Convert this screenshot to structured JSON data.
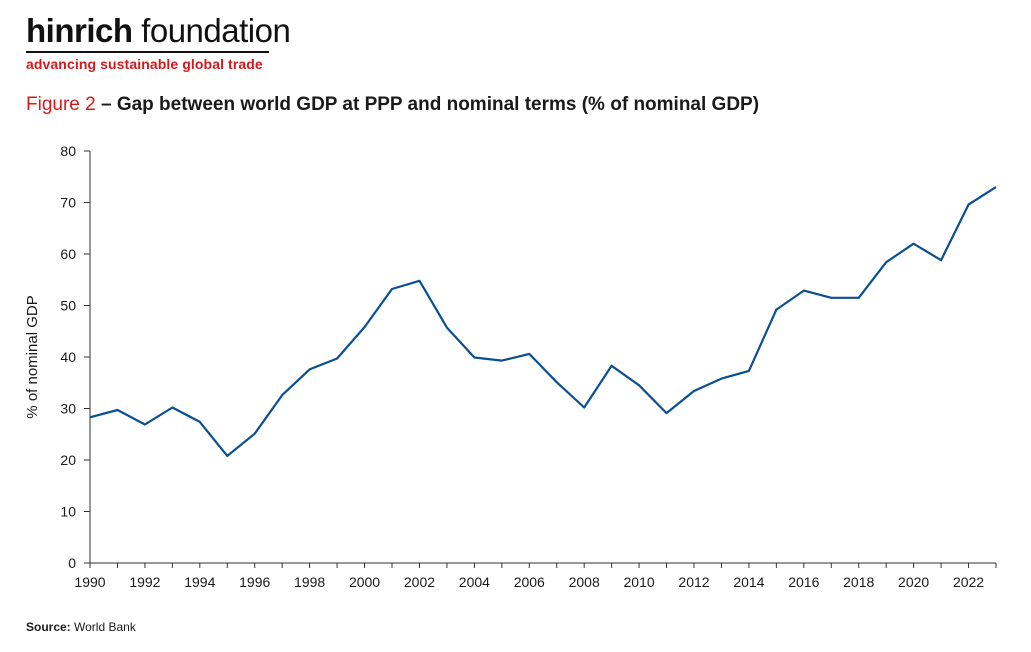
{
  "brand": {
    "name_bold": "hinrich",
    "name_regular": " foundation",
    "tagline": "advancing sustainable global trade"
  },
  "figure": {
    "label": "Figure 2",
    "title": " – Gap between world GDP at PPP and nominal terms (% of nominal GDP)"
  },
  "source": {
    "label": "Source:",
    "text": " World Bank"
  },
  "colors": {
    "line": "#0b4f93",
    "accent": "#d7191c",
    "axis": "#333333"
  },
  "chart_data": {
    "type": "line",
    "ylabel": "% of nominal GDP",
    "xlabel": "",
    "ylim": [
      0,
      80
    ],
    "xlim": [
      1990,
      2023
    ],
    "yticks": [
      0,
      10,
      20,
      30,
      40,
      50,
      60,
      70,
      80
    ],
    "xticks": [
      1990,
      1992,
      1994,
      1996,
      1998,
      2000,
      2002,
      2004,
      2006,
      2008,
      2010,
      2012,
      2014,
      2016,
      2018,
      2020,
      2022
    ],
    "grid": false,
    "series": [
      {
        "x": [
          1990,
          1991,
          1992,
          1993,
          1994,
          1995,
          1996,
          1997,
          1998,
          1999,
          2000,
          2001,
          2002,
          2003,
          2004,
          2005,
          2006,
          2007,
          2008,
          2009,
          2010,
          2011,
          2012,
          2013,
          2014,
          2015,
          2016,
          2017,
          2018,
          2019,
          2020,
          2021,
          2022,
          2023
        ],
        "values": [
          28.3,
          29.7,
          26.9,
          30.2,
          27.4,
          20.8,
          25.1,
          32.6,
          37.6,
          39.7,
          45.8,
          53.2,
          54.8,
          45.7,
          39.9,
          39.3,
          40.6,
          35.1,
          30.2,
          38.3,
          34.5,
          29.1,
          33.4,
          35.8,
          37.3,
          49.2,
          52.9,
          51.5,
          51.5,
          58.4,
          62.0,
          58.8,
          69.6,
          73.0
        ]
      }
    ]
  }
}
